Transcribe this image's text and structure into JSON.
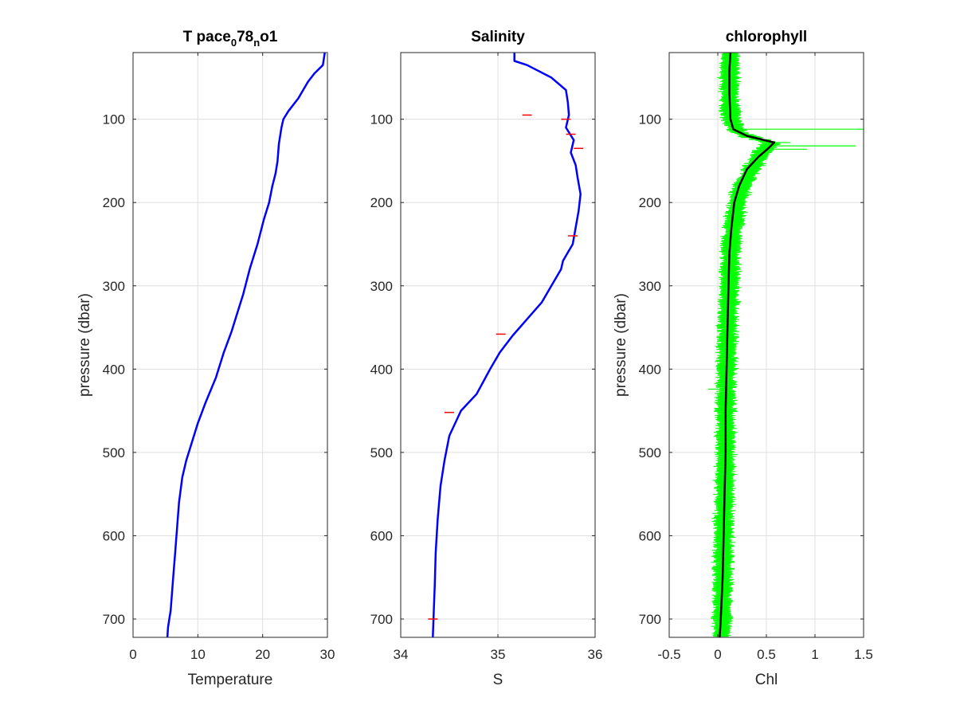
{
  "chart_data": [
    {
      "type": "line",
      "title": "T pace",
      "title_sub1": "0",
      "title_mid": "78",
      "title_sub2": "n",
      "title_end": "o1",
      "xlabel": "Temperature",
      "ylabel": "pressure (dbar)",
      "xlim": [
        0,
        30
      ],
      "ylim": [
        20,
        722
      ],
      "y_reversed": true,
      "grid": true,
      "xticks": [
        "0",
        "10",
        "20",
        "30"
      ],
      "yticks": [
        "100",
        "200",
        "300",
        "400",
        "500",
        "600",
        "700"
      ],
      "series": [
        {
          "color": "#0000ff",
          "x": [
            29.6,
            29.5,
            29.3,
            28.0,
            27.0,
            25.5,
            24.0,
            23.2,
            22.9,
            22.5,
            22.3,
            22.0,
            21.5,
            21.0,
            20.2,
            19.2,
            18.0,
            17.0,
            16.0,
            15.2,
            14.0,
            12.8,
            11.2,
            10.0,
            9.0,
            8.2,
            7.6,
            7.1,
            6.8,
            6.5,
            6.2,
            6.0,
            5.8,
            5.6,
            5.4,
            5.3
          ],
          "y": [
            20,
            25,
            35,
            45,
            55,
            75,
            90,
            100,
            110,
            130,
            150,
            165,
            180,
            200,
            220,
            250,
            280,
            310,
            335,
            355,
            380,
            410,
            440,
            465,
            490,
            510,
            530,
            560,
            590,
            620,
            650,
            670,
            690,
            700,
            710,
            722
          ]
        }
      ]
    },
    {
      "type": "line",
      "title": "Salinity",
      "xlabel": "S",
      "ylabel": "",
      "xlim": [
        34,
        36
      ],
      "ylim": [
        20,
        722
      ],
      "y_reversed": true,
      "grid": true,
      "xticks": [
        "34",
        "35",
        "36"
      ],
      "yticks": [
        "100",
        "200",
        "300",
        "400",
        "500",
        "600",
        "700"
      ],
      "series": [
        {
          "color": "#0000ff",
          "x": [
            35.17,
            35.17,
            35.3,
            35.55,
            35.7,
            35.72,
            35.73,
            35.7,
            35.78,
            35.75,
            35.8,
            35.82,
            35.85,
            35.83,
            35.8,
            35.77,
            35.72,
            35.67,
            35.65,
            35.55,
            35.45,
            35.3,
            35.15,
            35.02,
            34.92,
            34.85,
            34.78,
            34.62,
            34.5,
            34.45,
            34.41,
            34.38,
            34.36,
            34.35,
            34.34,
            34.33
          ],
          "y": [
            20,
            30,
            35,
            50,
            65,
            80,
            95,
            110,
            125,
            140,
            155,
            170,
            190,
            210,
            230,
            250,
            260,
            270,
            280,
            300,
            320,
            340,
            360,
            380,
            400,
            415,
            430,
            450,
            480,
            510,
            540,
            580,
            620,
            660,
            690,
            722
          ]
        },
        {
          "color": "#ff0000",
          "x": [
            35.3,
            35.7,
            35.75,
            35.83,
            35.77,
            35.03,
            34.5,
            34.33
          ],
          "y": [
            95,
            100,
            118,
            135,
            240,
            358,
            452,
            700
          ]
        }
      ]
    },
    {
      "type": "line",
      "title": "chlorophyll",
      "xlabel": "Chl",
      "ylabel": "pressure (dbar)",
      "xlim": [
        -0.5,
        1.5
      ],
      "ylim": [
        20,
        722
      ],
      "y_reversed": true,
      "grid": true,
      "xticks": [
        "-0.5",
        "0",
        "0.5",
        "1",
        "1.5"
      ],
      "yticks": [
        "100",
        "200",
        "300",
        "400",
        "500",
        "600",
        "700"
      ],
      "series": [
        {
          "color": "#00ff00",
          "x": [
            0.13,
            0.12,
            0.12,
            0.14,
            0.2,
            0.38,
            0.55,
            0.45,
            0.35,
            0.25,
            0.2,
            0.16,
            0.13,
            0.12,
            0.1,
            0.09,
            0.08,
            0.08,
            0.07,
            0.06,
            0.05,
            0.04
          ],
          "y": [
            20,
            50,
            80,
            100,
            115,
            123,
            128,
            140,
            160,
            180,
            200,
            230,
            260,
            300,
            350,
            400,
            450,
            500,
            550,
            600,
            650,
            722
          ],
          "spikes": [
            {
              "y": 112,
              "x": 1.5
            },
            {
              "y": 132,
              "x": 1.42
            },
            {
              "y": 128,
              "x": 0.75
            },
            {
              "y": 136,
              "x": 0.92
            },
            {
              "y": 226,
              "x": 0.28
            },
            {
              "y": 424,
              "x": -0.1
            }
          ]
        },
        {
          "color": "#000000",
          "x": [
            0.13,
            0.12,
            0.12,
            0.13,
            0.16,
            0.3,
            0.58,
            0.52,
            0.42,
            0.3,
            0.22,
            0.17,
            0.14,
            0.12,
            0.11,
            0.1,
            0.09,
            0.08,
            0.08,
            0.07,
            0.06,
            0.05,
            0.03,
            0.02
          ],
          "y": [
            20,
            40,
            70,
            100,
            112,
            120,
            128,
            135,
            145,
            160,
            180,
            200,
            230,
            260,
            300,
            350,
            400,
            450,
            500,
            550,
            600,
            650,
            700,
            722
          ]
        }
      ]
    }
  ]
}
